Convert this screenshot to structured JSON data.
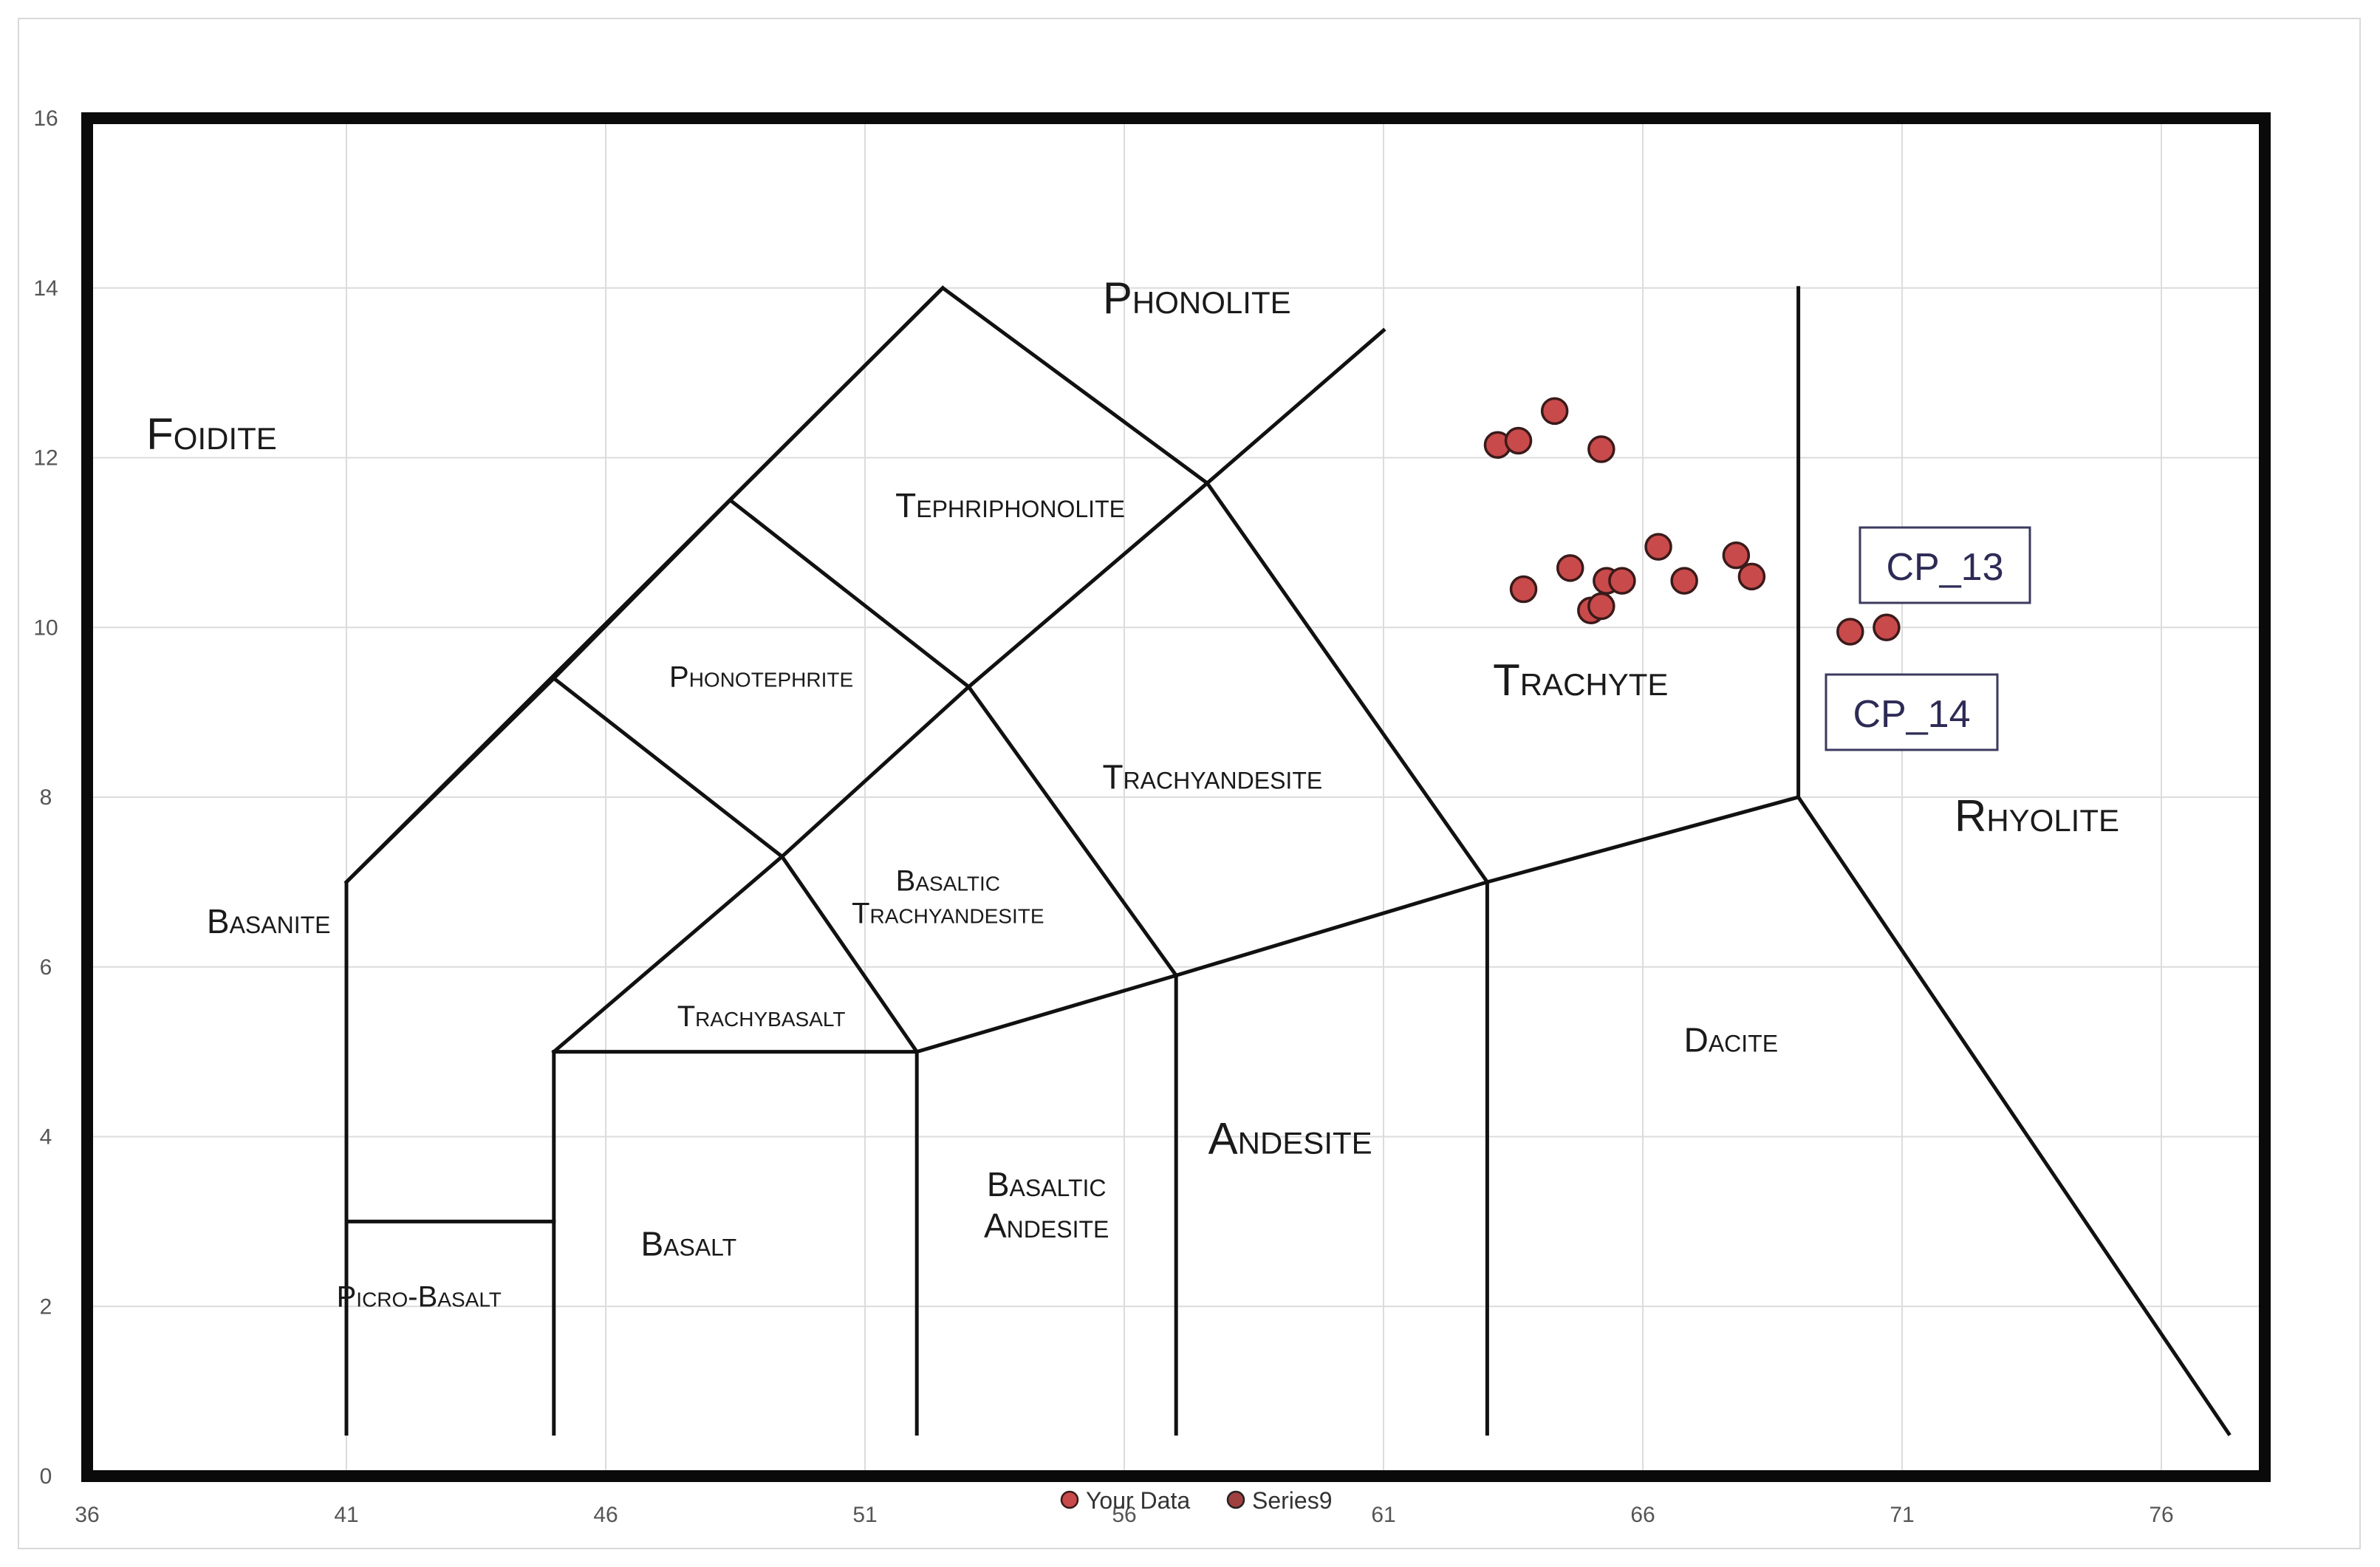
{
  "chart_data": {
    "type": "scatter",
    "title": "",
    "xlabel": "",
    "ylabel": "",
    "xlim": [
      36,
      78
    ],
    "ylim": [
      0,
      16
    ],
    "x_ticks": [
      36,
      41,
      46,
      51,
      56,
      61,
      66,
      71,
      76
    ],
    "y_ticks": [
      0,
      2,
      4,
      6,
      8,
      10,
      12,
      14,
      16
    ],
    "grid": true,
    "legend_position": "bottom",
    "colors": {
      "point_fill": "#c94a4a",
      "point_stroke": "#3a1a1a",
      "boundary": "#111111"
    },
    "series": [
      {
        "name": "Your Data",
        "x": [
          63.2,
          63.6,
          64.3,
          65.2,
          63.7,
          64.6,
          65.3,
          65.6,
          65.0,
          65.2,
          66.3,
          66.8,
          67.8,
          68.1,
          70.0,
          70.7
        ],
        "y": [
          12.15,
          12.2,
          12.55,
          12.1,
          10.45,
          10.7,
          10.55,
          10.55,
          10.2,
          10.25,
          10.95,
          10.55,
          10.85,
          10.6,
          9.95,
          10.0
        ]
      },
      {
        "name": "Series9",
        "x": [],
        "y": []
      }
    ],
    "regions": [
      {
        "label": "Phonolite",
        "x": 57.4,
        "y": 13.7
      },
      {
        "label": "Foidite",
        "x": 38.4,
        "y": 12.1
      },
      {
        "label": "Tephriphonolite",
        "x": 53.8,
        "y": 11.3
      },
      {
        "label": "Phonotephrite",
        "x": 49.0,
        "y": 9.3
      },
      {
        "label": "Trachyte",
        "x": 64.8,
        "y": 9.2
      },
      {
        "label": "Trachyandesite",
        "x": 57.7,
        "y": 8.1
      },
      {
        "label": "Rhyolite",
        "x": 73.6,
        "y": 7.6
      },
      {
        "label": "Basaltic Trachyandesite",
        "x": 52.6,
        "y": 6.9
      },
      {
        "label": "Basanite",
        "x": 39.5,
        "y": 6.4
      },
      {
        "label": "Trachybasalt",
        "x": 49.0,
        "y": 5.3
      },
      {
        "label": "Dacite",
        "x": 67.7,
        "y": 5.0
      },
      {
        "label": "Andesite",
        "x": 59.2,
        "y": 3.8
      },
      {
        "label": "Basaltic Andesite",
        "x": 54.5,
        "y": 3.3
      },
      {
        "label": "Basalt",
        "x": 47.6,
        "y": 2.6
      },
      {
        "label": "Picro-Basalt",
        "x": 42.4,
        "y": 2.0
      }
    ],
    "boundaries": [
      [
        [
          41,
          0.5
        ],
        [
          41,
          7
        ],
        [
          52.5,
          14
        ]
      ],
      [
        [
          41,
          3
        ],
        [
          45,
          3
        ]
      ],
      [
        [
          45,
          0.5
        ],
        [
          45,
          5
        ],
        [
          52,
          5
        ],
        [
          57,
          5.9
        ],
        [
          63,
          7
        ],
        [
          69,
          8
        ],
        [
          77.3,
          0.5
        ]
      ],
      [
        [
          45,
          5
        ],
        [
          49.4,
          7.3
        ],
        [
          53,
          9.3
        ],
        [
          57.6,
          11.7
        ],
        [
          61,
          13.5
        ]
      ],
      [
        [
          41,
          7
        ],
        [
          45,
          9.4
        ],
        [
          49.4,
          7.3
        ],
        [
          52,
          5
        ]
      ],
      [
        [
          45,
          9.4
        ],
        [
          48.4,
          11.5
        ],
        [
          53,
          9.3
        ],
        [
          57,
          5.9
        ]
      ],
      [
        [
          48.4,
          11.5
        ],
        [
          52.5,
          14
        ],
        [
          57.6,
          11.7
        ],
        [
          63,
          7
        ]
      ],
      [
        [
          52,
          5
        ],
        [
          52,
          0.5
        ]
      ],
      [
        [
          57,
          5.9
        ],
        [
          57,
          0.5
        ]
      ],
      [
        [
          63,
          7
        ],
        [
          63,
          0.5
        ]
      ],
      [
        [
          69,
          8
        ],
        [
          69,
          14
        ]
      ]
    ]
  },
  "annotations": [
    {
      "text": "CP_13"
    },
    {
      "text": "CP_14"
    }
  ]
}
